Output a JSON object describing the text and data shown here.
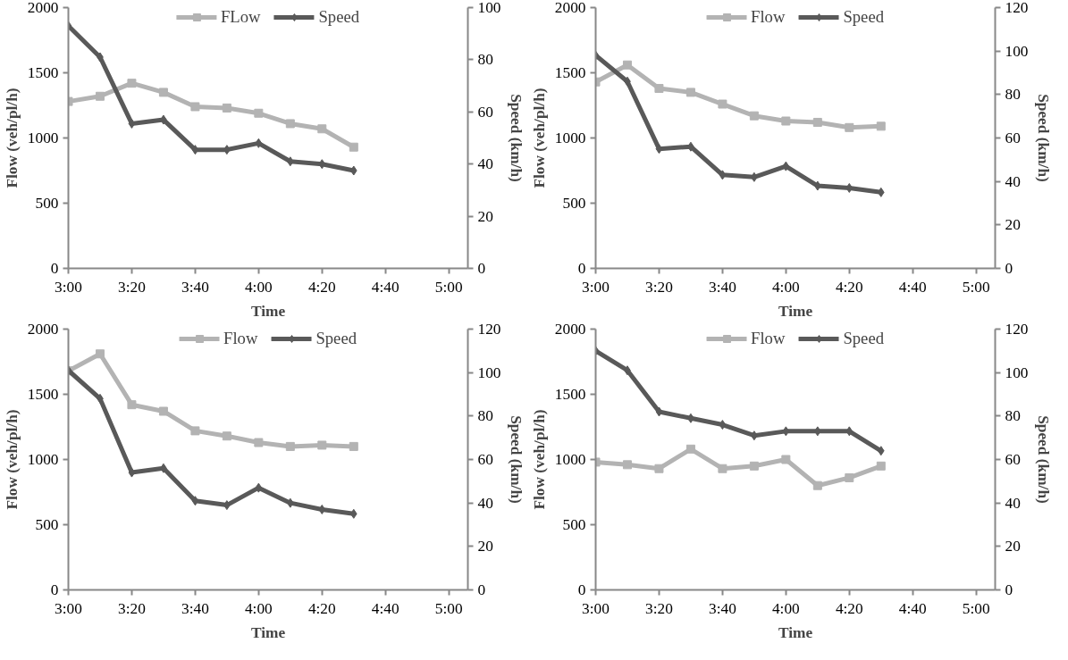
{
  "chart_data": [
    {
      "type": "line",
      "xlabel": "Time",
      "ylabel": "Flow (veh/pl/h)",
      "y2label": "Speed (km/h)",
      "x": [
        3,
        3.1667,
        3.3333,
        3.5,
        3.6667,
        3.8333,
        4,
        4.1667,
        4.3333,
        4.5
      ],
      "xlim": [
        3,
        5.1
      ],
      "xticks": [
        {
          "value": 3,
          "label": "3:00"
        },
        {
          "value": 3.3333,
          "label": "3:20"
        },
        {
          "value": 3.6667,
          "label": "3:40"
        },
        {
          "value": 4,
          "label": "4:00"
        },
        {
          "value": 4.3333,
          "label": "4:20"
        },
        {
          "value": 4.6667,
          "label": "4:40"
        },
        {
          "value": 5,
          "label": "5:00"
        }
      ],
      "ylim": [
        0,
        2000
      ],
      "yticks": [
        0,
        500,
        1000,
        1500,
        2000
      ],
      "y2lim": [
        0,
        100
      ],
      "y2ticks": [
        0,
        20,
        40,
        60,
        80,
        100
      ],
      "grid": false,
      "legend": "top",
      "line_style": "solid",
      "series": [
        {
          "name": "FLow",
          "color": "#b3b3b3",
          "marker": "square",
          "values": [
            1280,
            1320,
            1420,
            1350,
            1240,
            1230,
            1190,
            1110,
            1070,
            930
          ]
        },
        {
          "name": "Speed",
          "color": "#595959",
          "marker": "diamond",
          "axis": "y2",
          "values": [
            93,
            81,
            55.5,
            57,
            45.5,
            45.5,
            48,
            41,
            40,
            37.5
          ]
        }
      ]
    },
    {
      "type": "line",
      "xlabel": "Time",
      "ylabel": "Flow (veh/pl/h)",
      "y2label": "Speed (km/h)",
      "x": [
        3,
        3.1667,
        3.3333,
        3.5,
        3.6667,
        3.8333,
        4,
        4.1667,
        4.3333,
        4.5
      ],
      "xlim": [
        3,
        5.1
      ],
      "xticks": [
        {
          "value": 3,
          "label": "3:00"
        },
        {
          "value": 3.3333,
          "label": "3:20"
        },
        {
          "value": 3.6667,
          "label": "3:40"
        },
        {
          "value": 4,
          "label": "4:00"
        },
        {
          "value": 4.3333,
          "label": "4:20"
        },
        {
          "value": 4.6667,
          "label": "4:40"
        },
        {
          "value": 5,
          "label": "5:00"
        }
      ],
      "ylim": [
        0,
        2000
      ],
      "yticks": [
        0,
        500,
        1000,
        1500,
        2000
      ],
      "y2lim": [
        0,
        120
      ],
      "y2ticks": [
        0,
        20,
        40,
        60,
        80,
        100,
        120
      ],
      "grid": false,
      "legend": "top",
      "line_style": "solid",
      "series": [
        {
          "name": "Flow",
          "color": "#b3b3b3",
          "marker": "square",
          "values": [
            1430,
            1560,
            1380,
            1350,
            1260,
            1170,
            1130,
            1120,
            1080,
            1090
          ]
        },
        {
          "name": "Speed",
          "color": "#595959",
          "marker": "diamond",
          "axis": "y2",
          "values": [
            98,
            86,
            55,
            56,
            43,
            42,
            47,
            38,
            37,
            35
          ]
        }
      ]
    },
    {
      "type": "line",
      "xlabel": "Time",
      "ylabel": "Flow (veh/pl/h)",
      "y2label": "Speed (km/h)",
      "x": [
        3,
        3.1667,
        3.3333,
        3.5,
        3.6667,
        3.8333,
        4,
        4.1667,
        4.3333,
        4.5
      ],
      "xlim": [
        3,
        5.1
      ],
      "xticks": [
        {
          "value": 3,
          "label": "3:00"
        },
        {
          "value": 3.3333,
          "label": "3:20"
        },
        {
          "value": 3.6667,
          "label": "3:40"
        },
        {
          "value": 4,
          "label": "4:00"
        },
        {
          "value": 4.3333,
          "label": "4:20"
        },
        {
          "value": 4.6667,
          "label": "4:40"
        },
        {
          "value": 5,
          "label": "5:00"
        }
      ],
      "ylim": [
        0,
        2000
      ],
      "yticks": [
        0,
        500,
        1000,
        1500,
        2000
      ],
      "y2lim": [
        0,
        120
      ],
      "y2ticks": [
        0,
        20,
        40,
        60,
        80,
        100,
        120
      ],
      "grid": false,
      "legend": "top",
      "line_style": "solid",
      "series": [
        {
          "name": "Flow",
          "color": "#b3b3b3",
          "marker": "square",
          "values": [
            1680,
            1810,
            1420,
            1370,
            1220,
            1180,
            1130,
            1100,
            1110,
            1100
          ]
        },
        {
          "name": "Speed",
          "color": "#595959",
          "marker": "diamond",
          "axis": "y2",
          "values": [
            101,
            88,
            54,
            56,
            41,
            39,
            47,
            40,
            37,
            35
          ]
        }
      ]
    },
    {
      "type": "line",
      "xlabel": "Time",
      "ylabel": "Flow (veh/pl/h)",
      "y2label": "Speed (km/h)",
      "x": [
        3,
        3.1667,
        3.3333,
        3.5,
        3.6667,
        3.8333,
        4,
        4.1667,
        4.3333,
        4.5
      ],
      "xlim": [
        3,
        5.1
      ],
      "xticks": [
        {
          "value": 3,
          "label": "3:00"
        },
        {
          "value": 3.3333,
          "label": "3:20"
        },
        {
          "value": 3.6667,
          "label": "3:40"
        },
        {
          "value": 4,
          "label": "4:00"
        },
        {
          "value": 4.3333,
          "label": "4:20"
        },
        {
          "value": 4.6667,
          "label": "4:40"
        },
        {
          "value": 5,
          "label": "5:00"
        }
      ],
      "ylim": [
        0,
        2000
      ],
      "yticks": [
        0,
        500,
        1000,
        1500,
        2000
      ],
      "y2lim": [
        0,
        120
      ],
      "y2ticks": [
        0,
        20,
        40,
        60,
        80,
        100,
        120
      ],
      "grid": false,
      "legend": "top",
      "line_style": "solid",
      "series": [
        {
          "name": "Flow",
          "color": "#b3b3b3",
          "marker": "square",
          "values": [
            980,
            960,
            930,
            1080,
            930,
            950,
            1000,
            800,
            860,
            950
          ]
        },
        {
          "name": "Speed",
          "color": "#595959",
          "marker": "diamond",
          "axis": "y2",
          "values": [
            110,
            101,
            82,
            79,
            76,
            71,
            73,
            73,
            73,
            64
          ]
        }
      ]
    }
  ]
}
